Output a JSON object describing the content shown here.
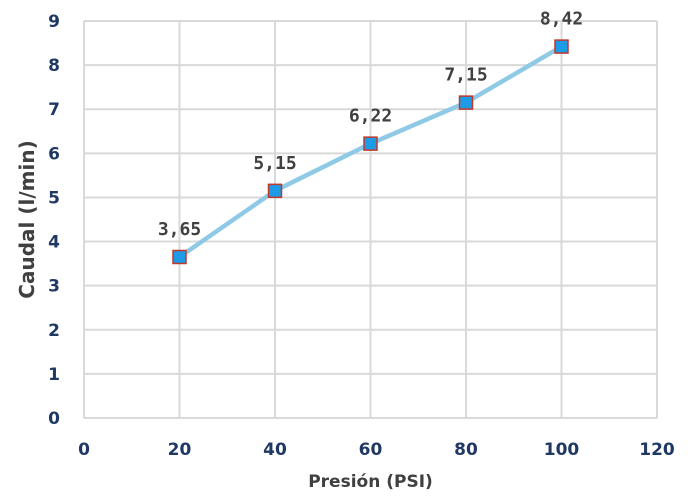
{
  "chart_data": {
    "type": "line",
    "title": "",
    "xlabel": "Presión (PSI)",
    "ylabel": "Caudal (l/min)",
    "xlim": [
      0,
      120
    ],
    "ylim": [
      0,
      9
    ],
    "xticks": [
      "0",
      "20",
      "40",
      "60",
      "80",
      "100",
      "120"
    ],
    "yticks": [
      "0",
      "1",
      "2",
      "3",
      "4",
      "5",
      "6",
      "7",
      "8",
      "9"
    ],
    "grid": true,
    "legend": "none",
    "series": [
      {
        "x": [
          20,
          40,
          60,
          80,
          100
        ],
        "y": [
          3.65,
          5.15,
          6.22,
          7.15,
          8.42
        ],
        "labels": [
          "3,65",
          "5,15",
          "6,22",
          "7,15",
          "8,42"
        ]
      }
    ],
    "colors": {
      "line": "#8ecae6",
      "marker_fill": "#1e9be6",
      "marker_edge": "#c0392b",
      "grid": "#d9d9d9",
      "tick_text": "#1f3864",
      "axis_title_text": "#404040"
    }
  }
}
